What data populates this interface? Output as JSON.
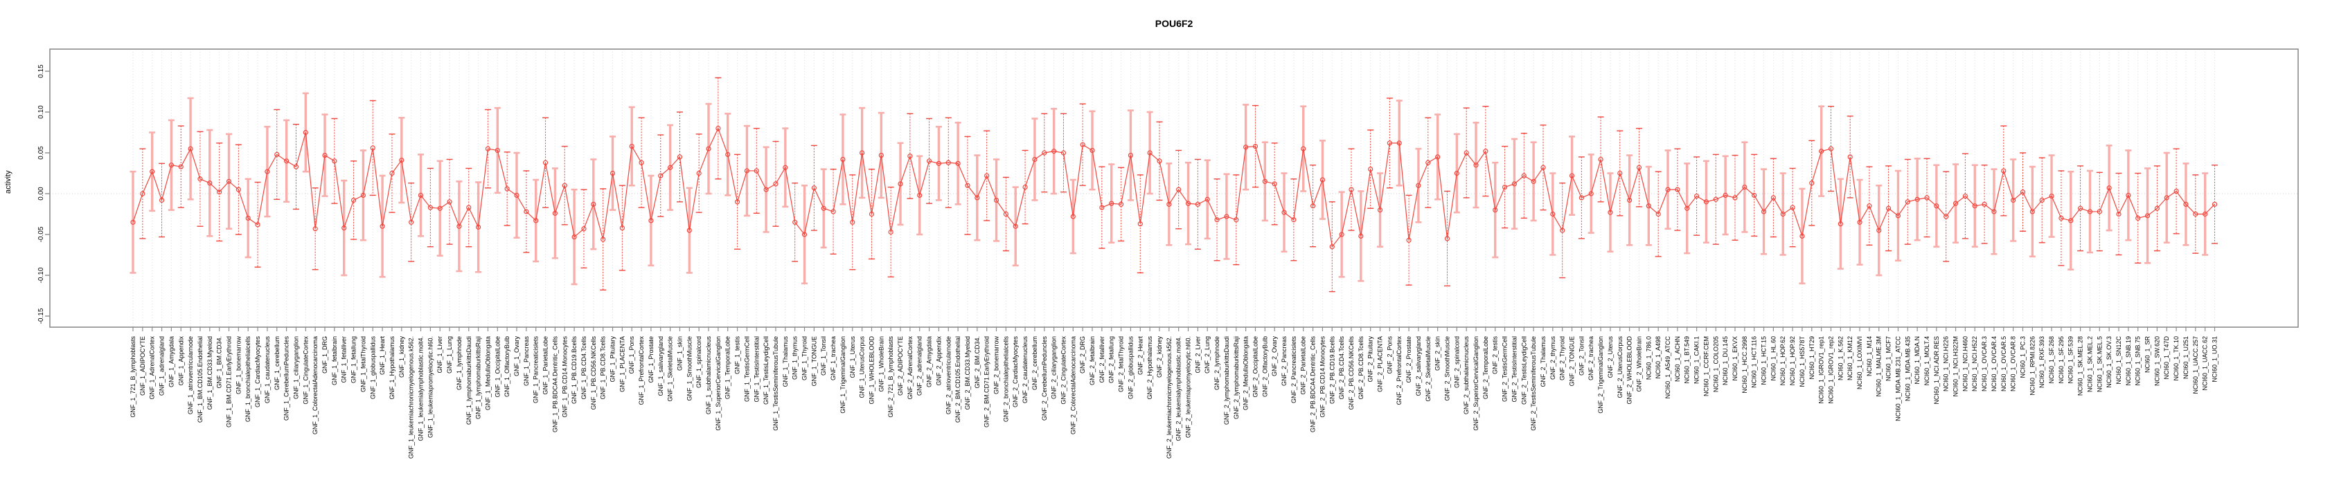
{
  "title": "POU6F2",
  "chart_data": {
    "type": "line",
    "title": "POU6F2",
    "xlabel": "",
    "ylabel": "activity",
    "ylim": [
      -0.17,
      0.17
    ],
    "yticks": [
      0.15,
      0.1,
      0.05,
      0.0,
      -0.05,
      -0.1,
      -0.15
    ],
    "legend_position": "none",
    "grid": "vertical dotted gridline per category; horizontal dotted line at zero",
    "marker": "open-circle",
    "error_bars": true,
    "colors": {
      "line": "#f0453c",
      "marker": "#f0453c",
      "error_bar_thick": "#f8aeab",
      "error_bar_dashed": "#f0453c",
      "frame": "#8c8c8c",
      "gridline": "#dedede",
      "zero_line": "#cccccc",
      "text": "#000000"
    },
    "categories": [
      "GNF_1_721_B_lymphoblasts",
      "GNF_1_ADIPOCYTE",
      "GNF_1_AdrenalCortex",
      "GNF_1_adrenalgland",
      "GNF_1_Amygdala",
      "GNF_1_Appendix",
      "GNF_1_atrioventricularnode",
      "GNF_1_BM.CD105.Endothelial",
      "GNF_1_BM.CD33.Myeloid",
      "GNF_1_BM.CD34.",
      "GNF_1_BM.CD71.EarlyErythroid",
      "GNF_1_bonemarrow",
      "GNF_1_bronchialepithelialcells",
      "GNF_1_CardiacMyocytes",
      "GNF_1_caudatenucleus",
      "GNF_1_cerebellum",
      "GNF_1_CerebellumPeduncles",
      "GNF_1_ciliaryganglion",
      "GNF_1_CingulateCortex",
      "GNF_1_ColorectalAdenocarcinoma",
      "GNF_1_DRG",
      "GNF_1_fetalbrain",
      "GNF_1_fetalliver",
      "GNF_1_fetallung",
      "GNF_1_fetalThyroid",
      "GNF_1_globuspallidus",
      "GNF_1_Heart",
      "GNF_1_Hypothalamus",
      "GNF_1_kidney",
      "GNF_1_leukemiachronicmyelogenous.k562.",
      "GNF_1_leukemialymphoblastic.molt4.",
      "GNF_1_leukemiapromyelocytic.hl60.",
      "GNF_1_Liver",
      "GNF_1_Lung",
      "GNF_1_lymphnode",
      "GNF_1_lymphomaburkittsDaudi",
      "GNF_1_lymphomaburkittsRaji",
      "GNF_1_MedullaOblongata",
      "GNF_1_OccipitalLobe",
      "GNF_1_OlfactoryBulb",
      "GNF_1_Ovary",
      "GNF_1_Pancreas",
      "GNF_1_Pancreaticislets",
      "GNF_1_ParietalLobe",
      "GNF_1_PB.BDCA4.Dentritic_Cells",
      "GNF_1_PB.CD14.Monocytes",
      "GNF_1_PB.CD19.Bcells",
      "GNF_1_PB.CD4.Tcells",
      "GNF_1_PB.CD56.NKCells",
      "GNF_1_PB.CD8.Tcells",
      "GNF_1_Pituitary",
      "GNF_1_PLACENTA",
      "GNF_1_Pons",
      "GNF_1_PrefrontalCortex",
      "GNF_1_Prostate",
      "GNF_1_salivarygland",
      "GNF_1_SkeletalMuscle",
      "GNF_1_skin",
      "GNF_1_SmoothMuscle",
      "GNF_1_spinalcord",
      "GNF_1_subthalamicnucleus",
      "GNF_1_SuperiorCervicalGanglion",
      "GNF_1_TemporalLobe",
      "GNF_1_testis",
      "GNF_1_TestisGermCell",
      "GNF_1_TestisInterstitial",
      "GNF_1_TestisLeydigCell",
      "GNF_1_TestisSeminiferousTubule",
      "GNF_1_Thalamus",
      "GNF_1_thymus",
      "GNF_1_Thyroid",
      "GNF_1_TONGUE",
      "GNF_1_Tonsil",
      "GNF_1_trachea",
      "GNF_1_TrigeminalGanglion",
      "GNF_1_Uterus",
      "GNF_1_UterusCorpus",
      "GNF_1_WHOLEBLOOD",
      "GNF_1_WholeBrain",
      "GNF_2_721_B_lymphoblasts",
      "GNF_2_ADIPOCYTE",
      "GNF_2_AdrenalCortex",
      "GNF_2_adrenalgland",
      "GNF_2_Amygdala",
      "GNF_2_Appendix",
      "GNF_2_atrioventricularnode",
      "GNF_2_BM.CD105.Endothelial",
      "GNF_2_BM.CD33.Myeloid",
      "GNF_2_BM.CD34.",
      "GNF_2_BM.CD71.EarlyErythroid",
      "GNF_2_bonemarrow",
      "GNF_2_bronchialepithelialcells",
      "GNF_2_CardiacMyocytes",
      "GNF_2_caudatenucleus",
      "GNF_2_cerebellum",
      "GNF_2_CerebellumPeduncles",
      "GNF_2_ciliaryganglion",
      "GNF_2_CingulateCortex",
      "GNF_2_ColorectalAdenocarcinoma",
      "GNF_2_DRG",
      "GNF_2_fetalbrain",
      "GNF_2_fetalliver",
      "GNF_2_fetallung",
      "GNF_2_fetalThyroid",
      "GNF_2_globuspallidus",
      "GNF_2_Heart",
      "GNF_2_Hypothalamus",
      "GNF_2_kidney",
      "GNF_2_leukemiachronicmyelogenous.k562.",
      "GNF_2_leukemialymphoblastic.molt4.",
      "GNF_2_leukemiapromyelocytic.hl60.",
      "GNF_2_Liver",
      "GNF_2_Lung",
      "GNF_2_lymphnode",
      "GNF_2_lymphomaburkittsDaudi",
      "GNF_2_lymphomaburkittsRaji",
      "GNF_2_MedullaOblongata",
      "GNF_2_OccipitalLobe",
      "GNF_2_OlfactoryBulb",
      "GNF_2_Ovary",
      "GNF_2_Pancreas",
      "GNF_2_Pancreaticislets",
      "GNF_2_ParietalLobe",
      "GNF_2_PB.BDCA4.Dentritic_Cells",
      "GNF_2_PB.CD14.Monocytes",
      "GNF_2_PB.CD19.Bcells",
      "GNF_2_PB.CD4.Tcells",
      "GNF_2_PB.CD56.NKCells",
      "GNF_2_PB.CD8.Tcells",
      "GNF_2_Pituitary",
      "GNF_2_PLACENTA",
      "GNF_2_Pons",
      "GNF_2_PrefrontalCortex",
      "GNF_2_Prostate",
      "GNF_2_salivarygland",
      "GNF_2_SkeletalMuscle",
      "GNF_2_skin",
      "GNF_2_SmoothMuscle",
      "GNF_2_spinalcord",
      "GNF_2_subthalamicnucleus",
      "GNF_2_SuperiorCervicalGanglion",
      "GNF_2_TemporalLobe",
      "GNF_2_testis",
      "GNF_2_TestisGermCell",
      "GNF_2_TestisInterstitial",
      "GNF_2_TestisLeydigCell",
      "GNF_2_TestisSeminiferousTubule",
      "GNF_2_Thalamus",
      "GNF_2_thymus",
      "GNF_2_Thyroid",
      "GNF_2_TONGUE",
      "GNF_2_Tonsil",
      "GNF_2_trachea",
      "GNF_2_TrigeminalGanglion",
      "GNF_2_Uterus",
      "GNF_2_UterusCorpus",
      "GNF_2_WHOLEBLOOD",
      "GNF_2_WholeBrain",
      "NCI60_1_786.0",
      "NCI60_1_A498",
      "NCI60_1_A549_ATCC",
      "NCI60_1_ACHN",
      "NCI60_1_BT.549",
      "NCI60_1_CAKI.1",
      "NCI60_1_CCRF.CEM",
      "NCI60_1_COLO205",
      "NCI60_1_DU.145",
      "NCI60_1_EKVX",
      "NCI60_1_HCC.2998",
      "NCI60_1_HCT.116",
      "NCI60_1_HCT.15",
      "NCI60_1_HL.60",
      "NCI60_1_HOP.62",
      "NCI60_1_HOP.92",
      "NCI60_1_HS578T",
      "NCI60_1_HT29",
      "NCI60_1_IGROV1_rep1",
      "NCI60_1_IGROV1_rep2",
      "NCI60_1_K.562",
      "NCI60_1_KM12",
      "NCI60_1_LOXIMVI",
      "NCI60_1_M14",
      "NCI60_1_MALME.3M",
      "NCI60_1_MCF7",
      "NCI60_1_MDA.MB.231_ATCC",
      "NCI60_1_MDA.MB.435",
      "NCI60_1_MDA.N",
      "NCI60_1_MOLT.4",
      "NCI60_1_NCI.ADR.RES",
      "NCI60_1_NCI.H226",
      "NCI60_1_NCI.H322M",
      "NCI60_1_NCI.H460",
      "NCI60_1_NCI.H522",
      "NCI60_1_OVCAR.3",
      "NCI60_1_OVCAR.4",
      "NCI60_1_OVCAR.5",
      "NCI60_1_OVCAR.8",
      "NCI60_1_PC.3",
      "NCI60_1_RPMI.8226",
      "NCI60_1_RXF.393",
      "NCI60_1_SF.268",
      "NCI60_1_SF.295",
      "NCI60_1_SF.539",
      "NCI60_1_SK.MEL.28",
      "NCI60_1_SK.MEL.2",
      "NCI60_1_SK.MEL.5",
      "NCI60_1_SK.OV.3",
      "NCI60_1_SN12C",
      "NCI60_1_SNB.19",
      "NCI60_1_SNB.75",
      "NCI60_1_SR",
      "NCI60_1_SW.620",
      "NCI60_1_T47D",
      "NCI60_1_TK.10",
      "NCI60_1_U251",
      "NCI60_1_UACC.257",
      "NCI60_1_UACC.62",
      "NCI60_1_UO.31"
    ],
    "values": [
      -0.035,
      0.0,
      0.027,
      -0.008,
      0.035,
      0.033,
      0.055,
      0.018,
      0.013,
      0.002,
      0.015,
      0.005,
      -0.03,
      -0.038,
      0.027,
      0.048,
      0.04,
      0.033,
      0.075,
      -0.043,
      0.047,
      0.04,
      -0.042,
      -0.008,
      -0.002,
      0.056,
      -0.04,
      0.025,
      0.041,
      -0.035,
      -0.002,
      -0.017,
      -0.018,
      -0.01,
      -0.04,
      -0.017,
      -0.041,
      0.055,
      0.053,
      0.006,
      -0.002,
      -0.022,
      -0.033,
      0.038,
      -0.024,
      0.01,
      -0.053,
      -0.043,
      -0.013,
      -0.056,
      0.025,
      -0.042,
      0.058,
      0.038,
      -0.033,
      0.022,
      0.032,
      0.045,
      -0.045,
      0.025,
      0.055,
      0.08,
      0.048,
      -0.01,
      0.028,
      0.028,
      0.005,
      0.012,
      0.032,
      -0.035,
      -0.05,
      0.007,
      -0.018,
      -0.022,
      0.042,
      -0.035,
      0.05,
      -0.025,
      0.047,
      -0.047,
      0.012,
      0.046,
      -0.002,
      0.04,
      0.037,
      0.038,
      0.037,
      0.01,
      -0.005,
      0.022,
      -0.008,
      -0.025,
      -0.04,
      0.008,
      0.042,
      0.05,
      0.052,
      0.05,
      -0.028,
      0.06,
      0.053,
      -0.017,
      -0.012,
      -0.013,
      0.047,
      -0.037,
      0.05,
      0.04,
      -0.013,
      0.005,
      -0.012,
      -0.013,
      -0.007,
      -0.032,
      -0.028,
      -0.032,
      0.057,
      0.058,
      0.015,
      0.012,
      -0.023,
      -0.032,
      0.055,
      -0.015,
      0.017,
      -0.065,
      -0.05,
      0.005,
      -0.052,
      0.03,
      -0.02,
      0.062,
      0.062,
      -0.057,
      0.01,
      0.038,
      0.045,
      -0.055,
      0.025,
      0.05,
      0.035,
      0.052,
      -0.02,
      0.008,
      0.012,
      0.022,
      0.015,
      0.032,
      -0.025,
      -0.045,
      0.022,
      -0.005,
      0.0,
      0.042,
      -0.023,
      0.025,
      -0.008,
      0.032,
      -0.015,
      -0.025,
      0.005,
      0.005,
      -0.018,
      -0.003,
      -0.01,
      -0.007,
      -0.002,
      -0.005,
      0.008,
      -0.002,
      -0.022,
      -0.005,
      -0.025,
      -0.017,
      -0.052,
      0.013,
      0.052,
      0.055,
      -0.037,
      0.045,
      -0.035,
      -0.015,
      -0.045,
      -0.018,
      -0.027,
      -0.01,
      -0.007,
      -0.005,
      -0.015,
      -0.028,
      -0.012,
      -0.003,
      -0.015,
      -0.013,
      -0.022,
      0.028,
      -0.008,
      0.002,
      -0.022,
      -0.008,
      -0.003,
      -0.03,
      -0.033,
      -0.018,
      -0.022,
      -0.022,
      0.007,
      -0.025,
      -0.002,
      -0.03,
      -0.027,
      -0.018,
      -0.005,
      0.003,
      -0.013,
      -0.025,
      -0.025,
      -0.013
    ],
    "errors": [
      0.062,
      0.055,
      0.048,
      0.045,
      0.055,
      0.05,
      0.062,
      0.058,
      0.065,
      0.06,
      0.058,
      0.055,
      0.048,
      0.052,
      0.055,
      0.055,
      0.05,
      0.052,
      0.048,
      0.05,
      0.05,
      0.052,
      0.058,
      0.048,
      0.055,
      0.058,
      0.062,
      0.048,
      0.052,
      0.048,
      0.05,
      0.048,
      0.058,
      0.052,
      0.055,
      0.048,
      0.055,
      0.048,
      0.052,
      0.045,
      0.052,
      0.05,
      0.05,
      0.055,
      0.055,
      0.048,
      0.058,
      0.048,
      0.055,
      0.062,
      0.045,
      0.052,
      0.048,
      0.055,
      0.055,
      0.05,
      0.052,
      0.055,
      0.052,
      0.048,
      0.055,
      0.062,
      0.05,
      0.058,
      0.055,
      0.052,
      0.052,
      0.052,
      0.048,
      0.048,
      0.06,
      0.052,
      0.048,
      0.052,
      0.055,
      0.058,
      0.055,
      0.055,
      0.052,
      0.055,
      0.05,
      0.052,
      0.048,
      0.052,
      0.045,
      0.055,
      0.05,
      0.06,
      0.052,
      0.055,
      0.05,
      0.045,
      0.048,
      0.045,
      0.05,
      0.048,
      0.052,
      0.048,
      0.045,
      0.05,
      0.048,
      0.05,
      0.048,
      0.045,
      0.055,
      0.06,
      0.05,
      0.048,
      0.05,
      0.048,
      0.05,
      0.055,
      0.048,
      0.05,
      0.052,
      0.055,
      0.052,
      0.05,
      0.048,
      0.05,
      0.048,
      0.05,
      0.052,
      0.05,
      0.048,
      0.055,
      0.052,
      0.05,
      0.055,
      0.048,
      0.045,
      0.055,
      0.052,
      0.055,
      0.045,
      0.055,
      0.052,
      0.058,
      0.048,
      0.055,
      0.052,
      0.055,
      0.058,
      0.05,
      0.055,
      0.052,
      0.048,
      0.052,
      0.05,
      0.058,
      0.048,
      0.05,
      0.048,
      0.052,
      0.048,
      0.052,
      0.055,
      0.048,
      0.048,
      0.052,
      0.048,
      0.05,
      0.055,
      0.048,
      0.05,
      0.055,
      0.048,
      0.052,
      0.055,
      0.05,
      0.052,
      0.048,
      0.05,
      0.048,
      0.058,
      0.052,
      0.055,
      0.052,
      0.055,
      0.05,
      0.052,
      0.048,
      0.055,
      0.052,
      0.055,
      0.052,
      0.05,
      0.048,
      0.05,
      0.055,
      0.048,
      0.052,
      0.05,
      0.048,
      0.052,
      0.055,
      0.05,
      0.048,
      0.055,
      0.052,
      0.05,
      0.058,
      0.06,
      0.052,
      0.05,
      0.048,
      0.052,
      0.05,
      0.055,
      0.055,
      0.058,
      0.052,
      0.055,
      0.052,
      0.05,
      0.048,
      0.05,
      0.048
    ]
  }
}
